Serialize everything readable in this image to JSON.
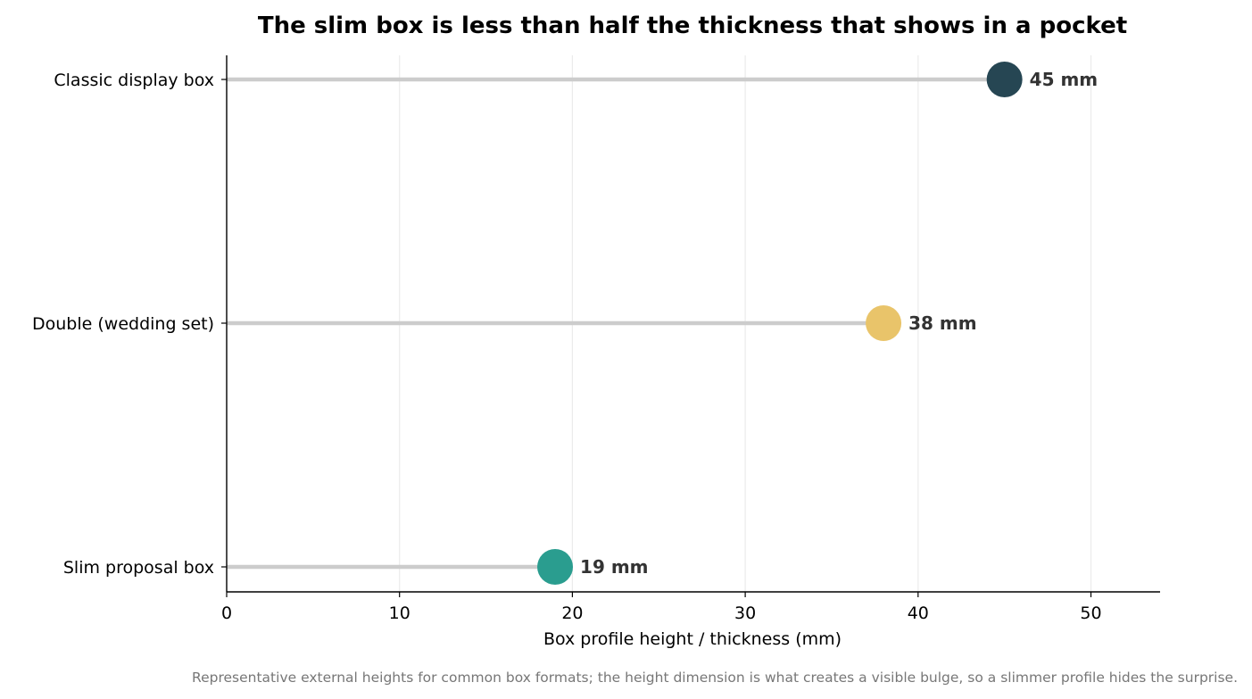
{
  "chart_data": {
    "type": "lollipop",
    "title": "The slim box is less than half the thickness that shows in a pocket",
    "xlabel": "Box profile height / thickness (mm)",
    "ylabel": "",
    "xlim": [
      0,
      54
    ],
    "x_ticks": [
      0,
      10,
      20,
      30,
      40,
      50
    ],
    "grid": "vertical",
    "unit_suffix": " mm",
    "categories": [
      "Classic display box",
      "Double (wedding set)",
      "Slim proposal box"
    ],
    "values": [
      45,
      38,
      19
    ],
    "value_labels": [
      "45 mm",
      "38 mm",
      "19 mm"
    ],
    "point_colors": [
      "#264653",
      "#e9c46a",
      "#2a9d8f"
    ],
    "stem_color": "#cccccc",
    "footnote": "Representative external heights for common box formats; the height dimension is what creates a visible bulge, so a slimmer profile hides the surprise."
  }
}
